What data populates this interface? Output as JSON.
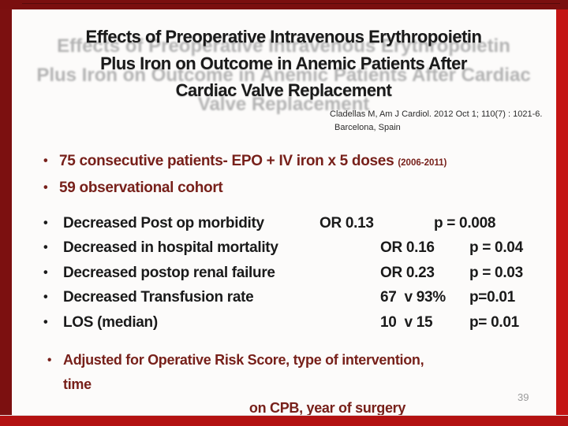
{
  "slide": {
    "colors": {
      "frame_dark_maroon": "#7a0f0f",
      "frame_bright_red": "#c41414",
      "frame_bottom_red": "#b31212",
      "title_text": "#1a1a1a",
      "accent_bullet_text": "#77201a",
      "stats_text": "#1a1a1a",
      "ghost_text": "#b3b3b3",
      "background": "#fcfbfa"
    },
    "title": {
      "lines": [
        "Effects of Preoperative Intravenous Erythropoietin",
        "Plus Iron on Outcome in Anemic Patients After",
        "Cardiac Valve Replacement"
      ],
      "ghost_lines": [
        "Effects of Preoperative Intravenous Erythropoietin",
        "Plus Iron on Outcome in Anemic Patients After Cardiac",
        "Valve Replacement"
      ]
    },
    "citation": {
      "line1": "Cladellas M, Am J Cardiol. 2012 Oct 1; 110(7) : 1021-6.",
      "line2": "Barcelona, Spain"
    },
    "cohort_bullets": [
      {
        "text": "75 consecutive patients- EPO + IV iron x 5 doses ",
        "suffix": "(2006-2011)"
      },
      {
        "text": "59 observational cohort",
        "suffix": ""
      }
    ],
    "stats": [
      {
        "label": "Decreased Post op morbidity",
        "value": "OR 0.13",
        "p": "p = 0.008"
      },
      {
        "label": "Decreased in hospital mortality",
        "value": "OR 0.16",
        "p": "p = 0.04"
      },
      {
        "label": "Decreased postop renal failure",
        "value": "OR 0.23",
        "p": "p = 0.03"
      },
      {
        "label": "Decreased Transfusion rate",
        "value": "67  v 93%",
        "p": "p=0.01"
      },
      {
        "label": "LOS (median)",
        "value": "10  v 15",
        "p": "p= 0.01"
      }
    ],
    "adjustment_bullet": {
      "line1": "Adjusted for Operative Risk Score, type of intervention,",
      "line2": "time",
      "line3": "on CPB, year of surgery"
    },
    "page_number": "39"
  }
}
